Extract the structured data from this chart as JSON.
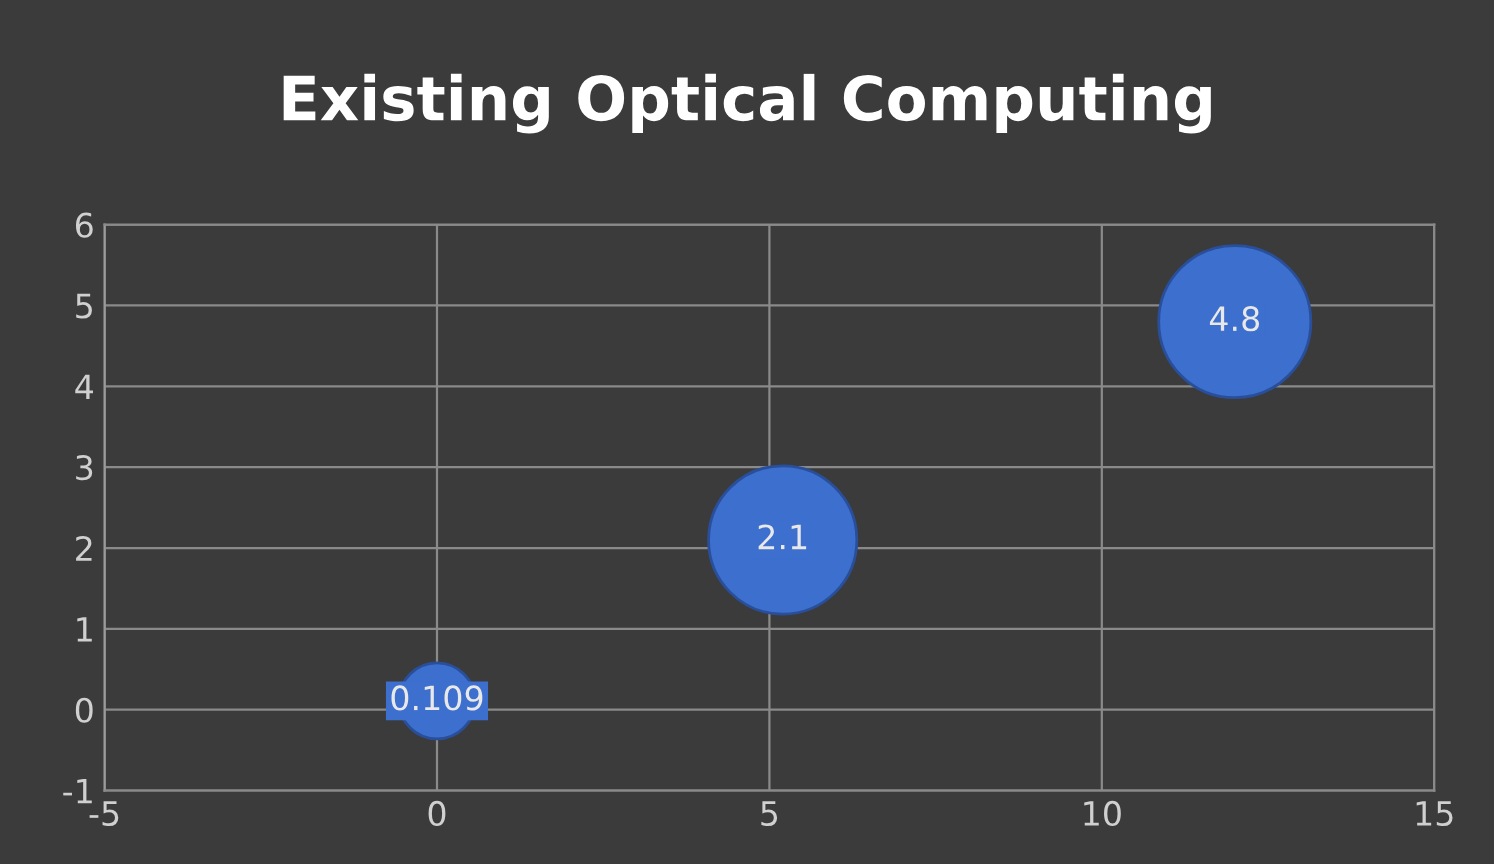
{
  "chart_data": {
    "type": "bubble",
    "title": "Existing Optical Computing",
    "x": [
      0,
      5.2,
      12
    ],
    "values": [
      0.109,
      2.1,
      4.8
    ],
    "sizes": [
      0.25,
      0.95,
      1
    ],
    "color": "#3d6fcf",
    "xlim": [
      -5,
      15
    ],
    "ylim": [
      -1,
      6
    ],
    "xticks": [
      -5,
      0,
      5,
      10,
      15
    ],
    "yticks": [
      -1,
      0,
      1,
      2,
      3,
      4,
      5,
      6
    ],
    "grid": true,
    "data_labels": true
  }
}
